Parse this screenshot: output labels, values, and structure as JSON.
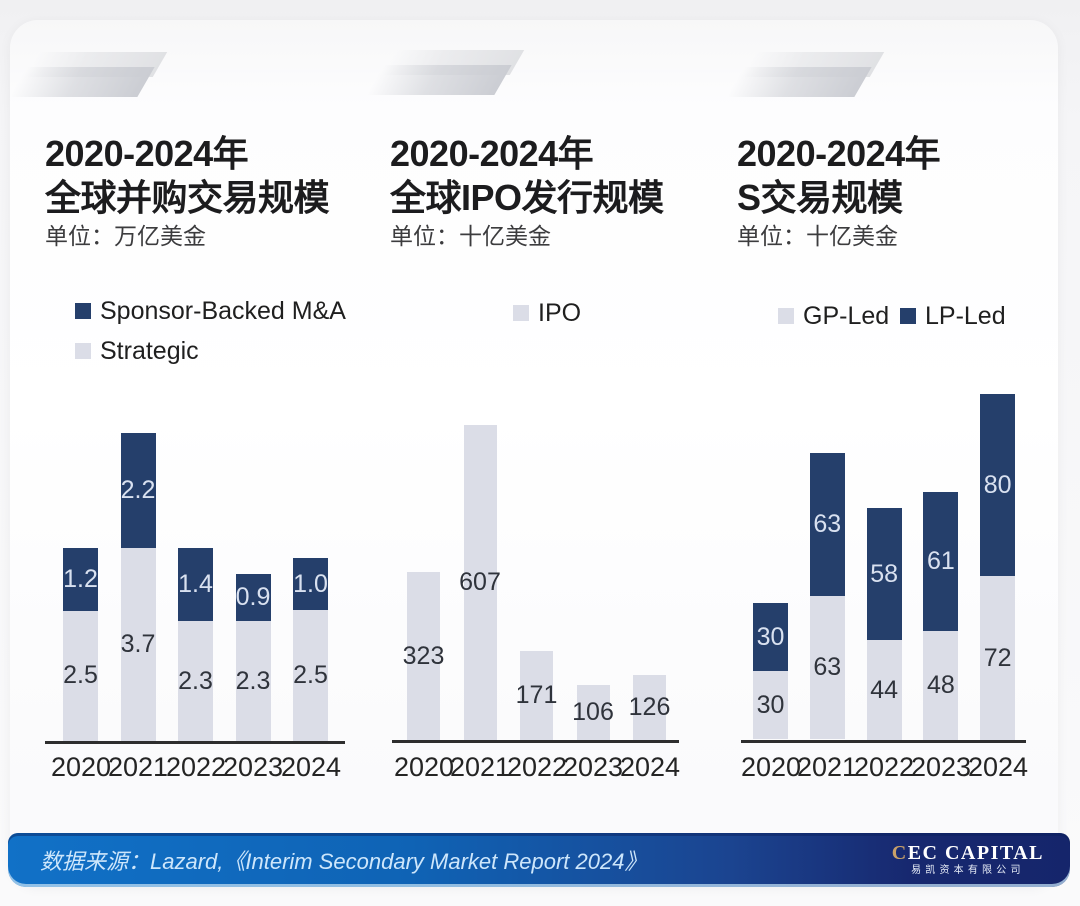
{
  "colors": {
    "navy": "#253F6B",
    "bar_gray": "#DBDDE7",
    "label_on_navy": "#D9E1F0",
    "label_on_gray": "#2F333B",
    "axis": "#2E2E2E",
    "footer_left_blue": "#1171C7",
    "footer_right_navy": "#15256B",
    "logo_gold": "#C9A169"
  },
  "footer": {
    "source_text": "数据来源：Lazard,《Interim Secondary Market Report 2024》",
    "logo": {
      "first": "C",
      "rest": "EC CAPITAL",
      "subtext": "易凯资本有限公司"
    }
  },
  "chart_data": [
    {
      "type": "bar",
      "stacked": true,
      "title_line1": "2020-2024年",
      "title_line2": "全球并购交易规模",
      "unit": "单位：万亿美金",
      "categories": [
        "2020",
        "2021",
        "2022",
        "2023",
        "2024"
      ],
      "series": [
        {
          "name": "Strategic",
          "color": "#DBDDE7",
          "label_color": "#2F333B",
          "values": [
            2.5,
            3.7,
            2.3,
            2.3,
            2.5
          ],
          "labels": [
            "2.5",
            "3.7",
            "2.3",
            "2.3",
            "2.5"
          ]
        },
        {
          "name": "Sponsor-Backed M&A",
          "color": "#253F6B",
          "label_color": "#D9E1F0",
          "values": [
            1.2,
            2.2,
            1.4,
            0.9,
            1.0
          ],
          "labels": [
            "1.2",
            "2.2",
            "1.4",
            "0.9",
            "1.0"
          ]
        }
      ],
      "legend": [
        {
          "label": "Sponsor-Backed M&A",
          "color": "#253F6B"
        },
        {
          "label": "Strategic",
          "color": "#DBDDE7"
        }
      ],
      "grid": false,
      "value_axis_visible": false
    },
    {
      "type": "bar",
      "stacked": false,
      "title_line1": "2020-2024年",
      "title_line2": "全球IPO发行规模",
      "unit": "单位：十亿美金",
      "categories": [
        "2020",
        "2021",
        "2022",
        "2023",
        "2024"
      ],
      "series": [
        {
          "name": "IPO",
          "color": "#DBDDE7",
          "label_color": "#2F333B",
          "values": [
            323,
            607,
            171,
            106,
            126
          ],
          "labels": [
            "323",
            "607",
            "171",
            "106",
            "126"
          ]
        }
      ],
      "legend": [
        {
          "label": "IPO",
          "color": "#DBDDE7"
        }
      ],
      "grid": false,
      "value_axis_visible": false
    },
    {
      "type": "bar",
      "stacked": true,
      "title_line1": "2020-2024年",
      "title_line2": "S交易规模",
      "unit": "单位：十亿美金",
      "categories": [
        "2020",
        "2021",
        "2022",
        "2023",
        "2024"
      ],
      "series": [
        {
          "name": "GP-Led",
          "color": "#DBDDE7",
          "label_color": "#2F333B",
          "values": [
            30,
            63,
            44,
            48,
            72
          ],
          "labels": [
            "30",
            "63",
            "44",
            "48",
            "72"
          ]
        },
        {
          "name": "LP-Led",
          "color": "#253F6B",
          "label_color": "#D9E1F0",
          "values": [
            30,
            63,
            58,
            61,
            80
          ],
          "labels": [
            "30",
            "63",
            "58",
            "61",
            "80"
          ]
        }
      ],
      "legend": [
        {
          "label": "GP-Led",
          "color": "#DBDDE7"
        },
        {
          "label": "LP-Led",
          "color": "#253F6B"
        }
      ],
      "grid": false,
      "value_axis_visible": false
    }
  ]
}
